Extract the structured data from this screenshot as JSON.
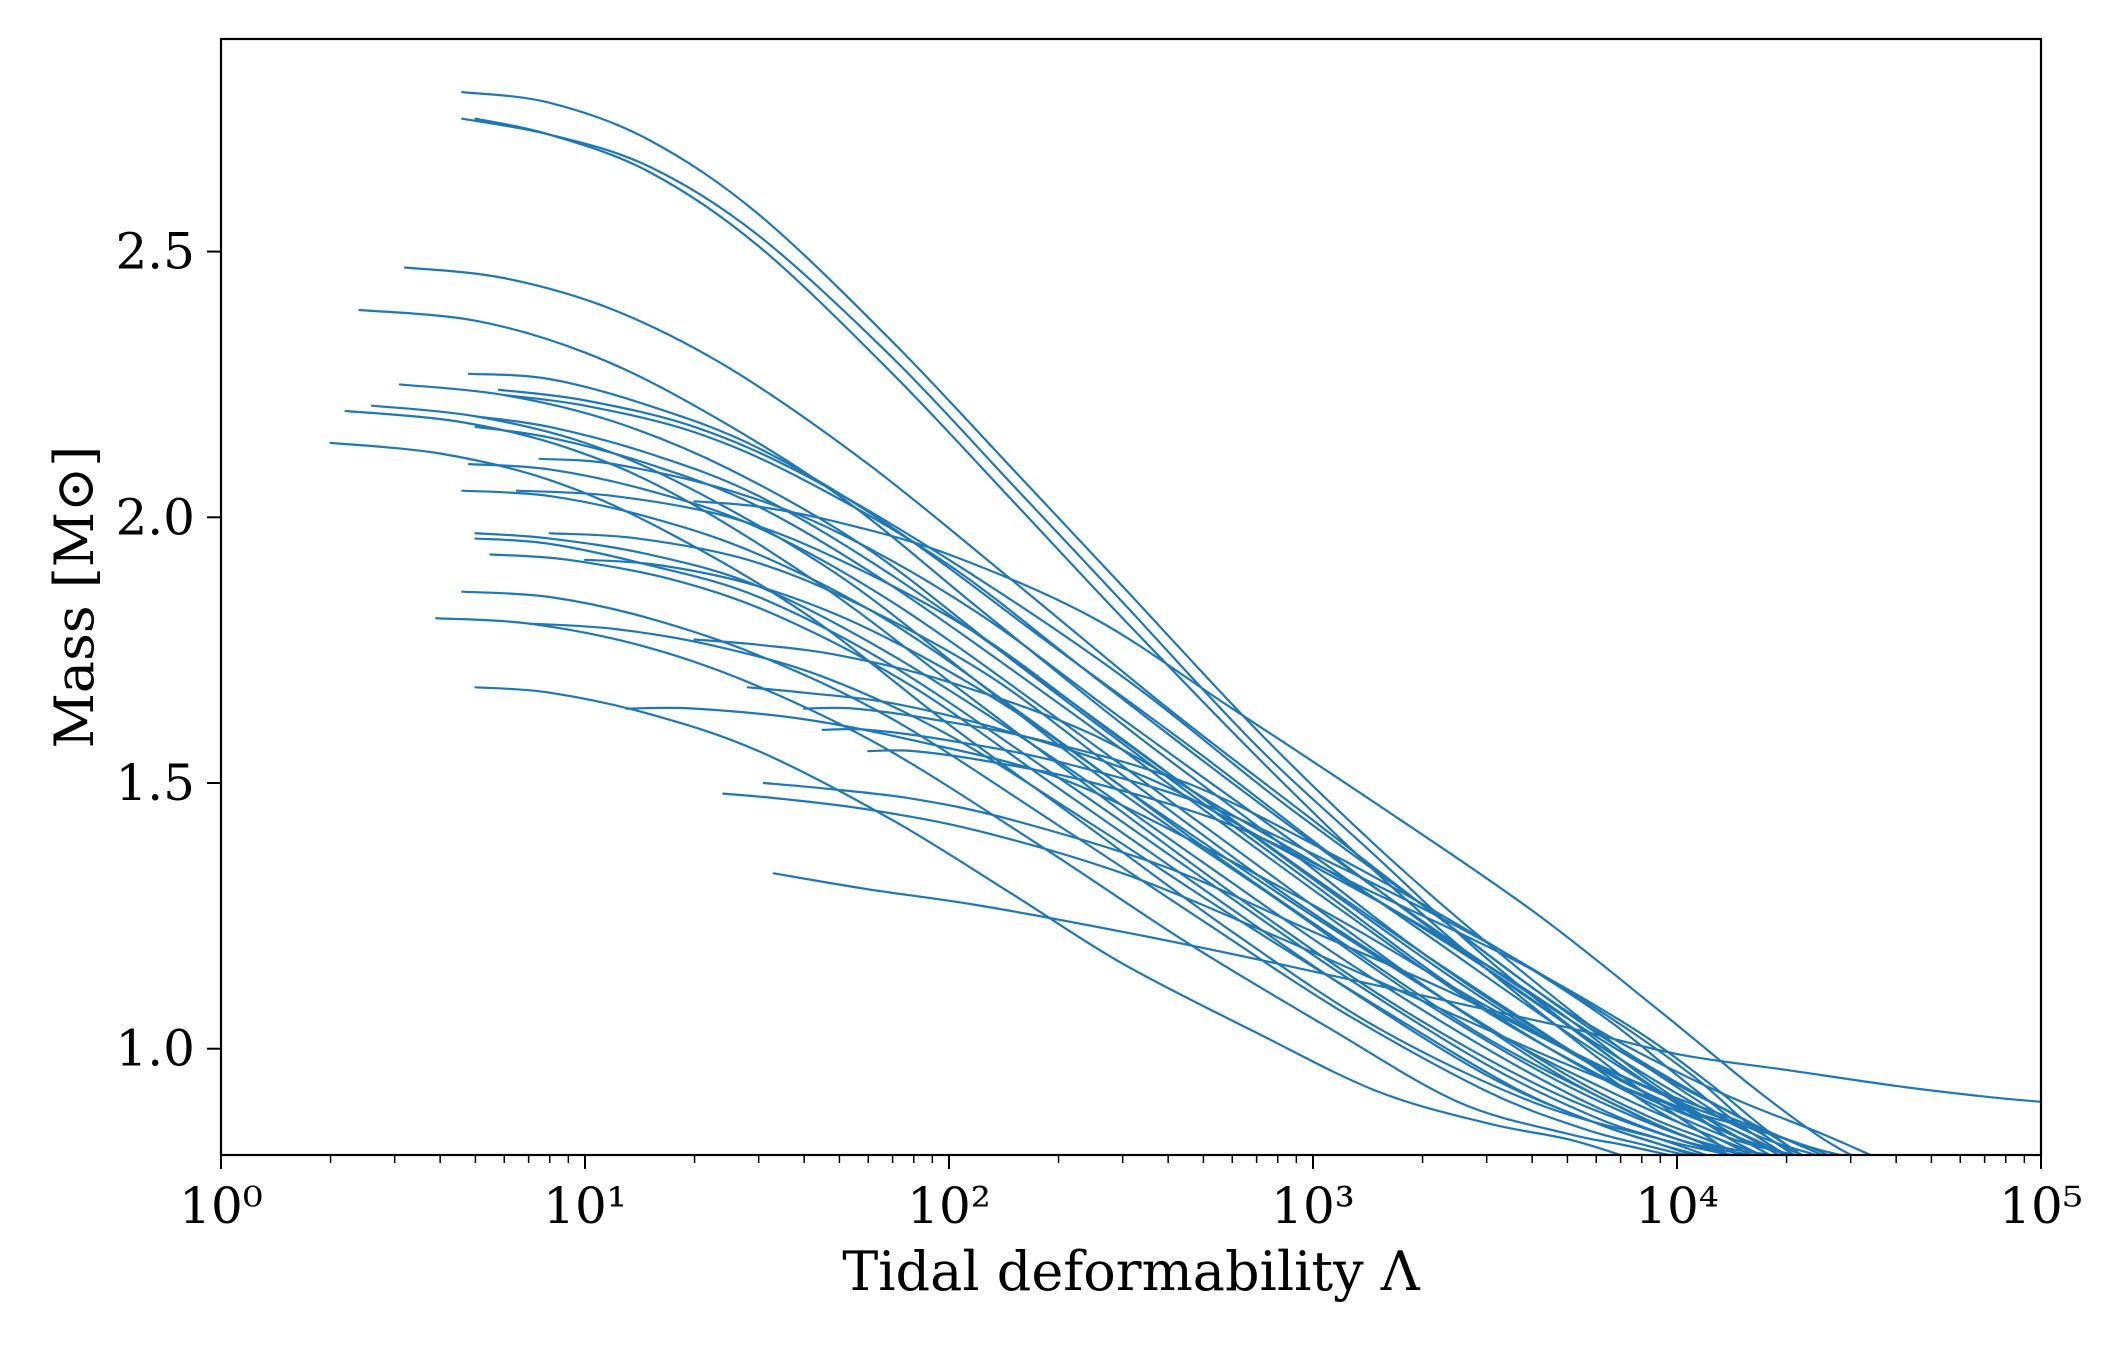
{
  "chart_data": {
    "type": "line",
    "title": "",
    "xlabel": "Tidal deformability Λ",
    "ylabel": "Mass [M⊙]",
    "xscale": "log",
    "xlim": [
      1,
      100000
    ],
    "ylim": [
      0.8,
      2.9
    ],
    "grid": false,
    "legend": "none",
    "line_color": "#1f77b4",
    "x_ticks": [
      {
        "value": 1,
        "label": "10⁰"
      },
      {
        "value": 10,
        "label": "10¹"
      },
      {
        "value": 100,
        "label": "10²"
      },
      {
        "value": 1000,
        "label": "10³"
      },
      {
        "value": 10000,
        "label": "10⁴"
      },
      {
        "value": 100000,
        "label": "10⁵"
      }
    ],
    "y_ticks": [
      {
        "value": 1.0,
        "label": "1.0"
      },
      {
        "value": 1.5,
        "label": "1.5"
      },
      {
        "value": 2.0,
        "label": "2.0"
      },
      {
        "value": 2.5,
        "label": "2.5"
      }
    ],
    "series": [
      {
        "x": [
          4.6,
          8,
          15,
          30,
          70,
          150,
          300,
          700,
          1500,
          3000,
          7000,
          15000
        ],
        "y": [
          2.8,
          2.78,
          2.71,
          2.57,
          2.33,
          2.09,
          1.87,
          1.6,
          1.38,
          1.2,
          1.0,
          0.85
        ]
      },
      {
        "x": [
          4.6,
          8,
          15,
          30,
          70,
          150,
          300,
          700,
          1500,
          3000,
          7000,
          14000
        ],
        "y": [
          2.75,
          2.72,
          2.66,
          2.53,
          2.3,
          2.06,
          1.84,
          1.57,
          1.36,
          1.17,
          0.97,
          0.83
        ]
      },
      {
        "x": [
          5.0,
          8,
          15,
          30,
          70,
          150,
          300,
          700,
          1500,
          3000,
          7000,
          13000
        ],
        "y": [
          2.75,
          2.72,
          2.65,
          2.51,
          2.27,
          2.03,
          1.81,
          1.55,
          1.33,
          1.15,
          0.95,
          0.82
        ]
      },
      {
        "x": [
          3.2,
          6,
          12,
          25,
          60,
          150,
          400,
          1000,
          2500,
          6000,
          14000,
          25000
        ],
        "y": [
          2.47,
          2.45,
          2.39,
          2.28,
          2.1,
          1.88,
          1.64,
          1.43,
          1.22,
          1.03,
          0.88,
          0.8
        ]
      },
      {
        "x": [
          2.4,
          5,
          10,
          20,
          50,
          120,
          300,
          800,
          2000,
          5000,
          12000,
          20000
        ],
        "y": [
          2.39,
          2.37,
          2.31,
          2.21,
          2.04,
          1.83,
          1.61,
          1.39,
          1.18,
          1.0,
          0.86,
          0.8
        ]
      },
      {
        "x": [
          4.8,
          8,
          15,
          30,
          70,
          200,
          500,
          1200,
          3000,
          7000,
          15000,
          24000
        ],
        "y": [
          2.27,
          2.26,
          2.21,
          2.13,
          1.98,
          1.75,
          1.55,
          1.35,
          1.15,
          0.98,
          0.85,
          0.8
        ]
      },
      {
        "x": [
          3.1,
          6,
          12,
          25,
          60,
          150,
          400,
          1000,
          2500,
          6000,
          13000,
          21000
        ],
        "y": [
          2.25,
          2.23,
          2.18,
          2.09,
          1.94,
          1.73,
          1.51,
          1.31,
          1.11,
          0.95,
          0.84,
          0.8
        ]
      },
      {
        "x": [
          6.0,
          10,
          20,
          40,
          100,
          250,
          600,
          1500,
          4000,
          9000,
          16000,
          22000
        ],
        "y": [
          2.23,
          2.21,
          2.16,
          2.07,
          1.91,
          1.7,
          1.5,
          1.3,
          1.1,
          0.95,
          0.86,
          0.8
        ]
      },
      {
        "x": [
          2.6,
          5,
          10,
          20,
          50,
          120,
          300,
          800,
          2000,
          5000,
          11000,
          18000
        ],
        "y": [
          2.21,
          2.19,
          2.14,
          2.05,
          1.89,
          1.69,
          1.48,
          1.28,
          1.09,
          0.93,
          0.83,
          0.8
        ]
      },
      {
        "x": [
          2.2,
          4.5,
          9,
          18,
          45,
          110,
          280,
          700,
          1800,
          4500,
          10000,
          16000
        ],
        "y": [
          2.2,
          2.18,
          2.13,
          2.04,
          1.87,
          1.67,
          1.46,
          1.26,
          1.07,
          0.92,
          0.83,
          0.8
        ]
      },
      {
        "x": [
          2.0,
          4,
          8,
          16,
          40,
          100,
          250,
          600,
          1500,
          4000,
          9000,
          14000
        ],
        "y": [
          2.14,
          2.12,
          2.07,
          1.98,
          1.82,
          1.61,
          1.41,
          1.22,
          1.04,
          0.9,
          0.83,
          0.8
        ]
      },
      {
        "x": [
          5.0,
          8,
          15,
          30,
          70,
          200,
          500,
          1200,
          3000,
          7000,
          14000,
          20000
        ],
        "y": [
          2.19,
          2.17,
          2.12,
          2.04,
          1.89,
          1.67,
          1.47,
          1.28,
          1.09,
          0.94,
          0.85,
          0.8
        ]
      },
      {
        "x": [
          5.0,
          8,
          15,
          30,
          70,
          200,
          500,
          1200,
          3000,
          7000,
          13000,
          18000
        ],
        "y": [
          2.17,
          2.15,
          2.1,
          2.02,
          1.87,
          1.65,
          1.45,
          1.26,
          1.07,
          0.93,
          0.85,
          0.8
        ]
      },
      {
        "x": [
          4.8,
          8,
          15,
          30,
          70,
          200,
          500,
          1200,
          3000,
          7000,
          12000,
          17000
        ],
        "y": [
          2.1,
          2.09,
          2.05,
          1.98,
          1.84,
          1.62,
          1.42,
          1.23,
          1.04,
          0.91,
          0.84,
          0.8
        ]
      },
      {
        "x": [
          4.6,
          8,
          15,
          30,
          70,
          200,
          500,
          1200,
          3000,
          7000,
          11000,
          15000
        ],
        "y": [
          2.05,
          2.04,
          2.0,
          1.93,
          1.8,
          1.58,
          1.38,
          1.2,
          1.02,
          0.89,
          0.83,
          0.8
        ]
      },
      {
        "x": [
          5.0,
          8,
          15,
          30,
          70,
          200,
          500,
          1200,
          3000,
          6000,
          10000,
          14000
        ],
        "y": [
          1.97,
          1.96,
          1.93,
          1.87,
          1.74,
          1.54,
          1.35,
          1.17,
          1.0,
          0.89,
          0.83,
          0.8
        ]
      },
      {
        "x": [
          5.0,
          8,
          15,
          30,
          70,
          200,
          500,
          1200,
          3000,
          6000,
          9000,
          12000
        ],
        "y": [
          1.96,
          1.95,
          1.91,
          1.85,
          1.72,
          1.51,
          1.32,
          1.14,
          0.97,
          0.87,
          0.83,
          0.8
        ]
      },
      {
        "x": [
          5.5,
          9,
          18,
          35,
          80,
          200,
          500,
          1200,
          3000,
          6000,
          9000,
          11500
        ],
        "y": [
          1.93,
          1.92,
          1.88,
          1.81,
          1.68,
          1.49,
          1.3,
          1.12,
          0.95,
          0.86,
          0.82,
          0.8
        ]
      },
      {
        "x": [
          4.6,
          8,
          15,
          30,
          70,
          200,
          500,
          1200,
          3000,
          5500,
          8000,
          10500
        ],
        "y": [
          1.86,
          1.85,
          1.81,
          1.74,
          1.62,
          1.42,
          1.24,
          1.07,
          0.92,
          0.85,
          0.82,
          0.8
        ]
      },
      {
        "x": [
          3.9,
          7,
          14,
          28,
          65,
          180,
          450,
          1100,
          2500,
          5000,
          7000,
          9500
        ],
        "y": [
          1.81,
          1.8,
          1.76,
          1.69,
          1.57,
          1.38,
          1.2,
          1.04,
          0.9,
          0.84,
          0.82,
          0.8
        ]
      },
      {
        "x": [
          7.0,
          12,
          22,
          45,
          100,
          250,
          600,
          1500,
          3500,
          6000,
          9000,
          11000
        ],
        "y": [
          1.8,
          1.79,
          1.76,
          1.7,
          1.59,
          1.42,
          1.25,
          1.08,
          0.93,
          0.86,
          0.82,
          0.8
        ]
      },
      {
        "x": [
          5.0,
          8,
          15,
          30,
          70,
          150,
          300,
          700,
          1500,
          3000,
          5000,
          7000
        ],
        "y": [
          1.68,
          1.67,
          1.63,
          1.56,
          1.43,
          1.29,
          1.16,
          1.03,
          0.92,
          0.86,
          0.83,
          0.8
        ]
      },
      {
        "x": [
          13,
          20,
          40,
          80,
          200,
          500,
          1200,
          3000,
          7000,
          14000,
          22000,
          28000
        ],
        "y": [
          1.64,
          1.64,
          1.62,
          1.58,
          1.51,
          1.38,
          1.24,
          1.08,
          0.95,
          0.87,
          0.82,
          0.8
        ]
      },
      {
        "x": [
          24,
          35,
          60,
          120,
          300,
          800,
          2000,
          5000,
          10000,
          16000,
          22000,
          26000
        ],
        "y": [
          1.48,
          1.47,
          1.45,
          1.41,
          1.33,
          1.21,
          1.09,
          0.97,
          0.89,
          0.85,
          0.82,
          0.8
        ]
      },
      {
        "x": [
          31,
          45,
          80,
          150,
          400,
          1000,
          2500,
          6000,
          11000,
          16000,
          19000,
          22000
        ],
        "y": [
          1.5,
          1.49,
          1.47,
          1.43,
          1.34,
          1.22,
          1.1,
          0.97,
          0.89,
          0.85,
          0.82,
          0.8
        ]
      },
      {
        "x": [
          33,
          60,
          120,
          300,
          800,
          2000,
          5000,
          10000,
          20000,
          40000,
          70000,
          100000
        ],
        "y": [
          1.33,
          1.3,
          1.27,
          1.22,
          1.16,
          1.1,
          1.04,
          0.99,
          0.96,
          0.93,
          0.91,
          0.9
        ]
      },
      {
        "x": [
          5.8,
          10,
          20,
          40,
          100,
          300,
          800,
          2000,
          5000,
          12000,
          25000,
          34000
        ],
        "y": [
          2.24,
          2.22,
          2.17,
          2.08,
          1.92,
          1.7,
          1.47,
          1.27,
          1.07,
          0.93,
          0.84,
          0.8
        ]
      },
      {
        "x": [
          20,
          30,
          50,
          100,
          250,
          600,
          1500,
          4000,
          9000,
          16000,
          24000,
          30000
        ],
        "y": [
          2.03,
          2.02,
          1.99,
          1.93,
          1.81,
          1.64,
          1.46,
          1.26,
          1.07,
          0.93,
          0.84,
          0.8
        ]
      },
      {
        "x": [
          7.5,
          12,
          25,
          50,
          120,
          300,
          800,
          2000,
          5000,
          10000,
          15000,
          19000
        ],
        "y": [
          2.11,
          2.1,
          2.05,
          1.97,
          1.82,
          1.62,
          1.41,
          1.22,
          1.03,
          0.9,
          0.84,
          0.8
        ]
      },
      {
        "x": [
          6.5,
          12,
          25,
          50,
          120,
          300,
          800,
          2000,
          5000,
          9000,
          13000,
          16000
        ],
        "y": [
          2.05,
          2.04,
          2.0,
          1.92,
          1.78,
          1.58,
          1.37,
          1.18,
          1.0,
          0.88,
          0.83,
          0.8
        ]
      },
      {
        "x": [
          20,
          30,
          50,
          100,
          250,
          600,
          1500,
          3500,
          7000,
          11000,
          14000,
          17000
        ],
        "y": [
          1.77,
          1.76,
          1.74,
          1.69,
          1.59,
          1.44,
          1.28,
          1.12,
          0.97,
          0.88,
          0.83,
          0.8
        ]
      },
      {
        "x": [
          28,
          40,
          70,
          140,
          350,
          800,
          2000,
          4500,
          8000,
          12000,
          15000,
          18000
        ],
        "y": [
          1.68,
          1.67,
          1.65,
          1.6,
          1.51,
          1.38,
          1.23,
          1.08,
          0.95,
          0.87,
          0.83,
          0.8
        ]
      },
      {
        "x": [
          45,
          60,
          100,
          200,
          500,
          1200,
          3000,
          6500,
          11000,
          15000,
          18000,
          21000
        ],
        "y": [
          1.6,
          1.6,
          1.58,
          1.54,
          1.46,
          1.34,
          1.2,
          1.06,
          0.95,
          0.87,
          0.83,
          0.8
        ]
      },
      {
        "x": [
          60,
          80,
          130,
          250,
          600,
          1400,
          3500,
          7500,
          12000,
          16000,
          19000,
          22000
        ],
        "y": [
          1.56,
          1.56,
          1.54,
          1.5,
          1.42,
          1.3,
          1.17,
          1.04,
          0.94,
          0.87,
          0.83,
          0.8
        ]
      },
      {
        "x": [
          8,
          14,
          28,
          55,
          130,
          320,
          800,
          2000,
          4500,
          8000,
          11000,
          14000
        ],
        "y": [
          1.97,
          1.96,
          1.92,
          1.84,
          1.7,
          1.5,
          1.3,
          1.12,
          0.96,
          0.87,
          0.83,
          0.8
        ]
      },
      {
        "x": [
          10,
          16,
          30,
          60,
          140,
          350,
          900,
          2200,
          5000,
          8500,
          12000,
          15000
        ],
        "y": [
          1.92,
          1.91,
          1.87,
          1.79,
          1.65,
          1.46,
          1.27,
          1.1,
          0.95,
          0.87,
          0.83,
          0.8
        ]
      },
      {
        "x": [
          40,
          55,
          90,
          180,
          450,
          1100,
          2700,
          6000,
          10000,
          14000,
          17000,
          20000
        ],
        "y": [
          1.64,
          1.64,
          1.62,
          1.58,
          1.5,
          1.37,
          1.22,
          1.07,
          0.95,
          0.87,
          0.83,
          0.8
        ]
      }
    ]
  }
}
